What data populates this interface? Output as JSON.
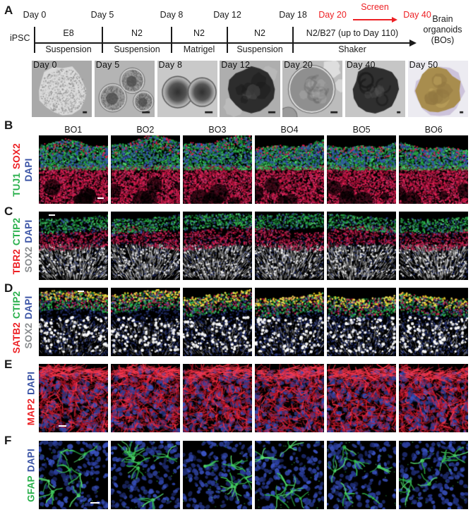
{
  "figure": {
    "accent_red": "#ed2024",
    "channel_colors": {
      "green": "#29b04b",
      "red": "#ed2024",
      "blue": "#3a53a5",
      "gray": "#898c8e"
    }
  },
  "panel_a": {
    "letter": "A",
    "timeline": {
      "ipsc": "iPSC",
      "day_marks": [
        "Day 0",
        "Day 5",
        "Day 8",
        "Day 12",
        "Day 18"
      ],
      "screen": {
        "day20": "Day 20",
        "screen": "Screen",
        "day40": "Day 40"
      },
      "segments": [
        {
          "top": "E8",
          "bottom": "Suspension"
        },
        {
          "top": "N2",
          "bottom": "Suspension"
        },
        {
          "top": "N2",
          "bottom": "Matrigel"
        },
        {
          "top": "N2",
          "bottom": "Suspension"
        },
        {
          "top": "N2/B27 (up to Day 110)",
          "bottom": "Shaker"
        }
      ],
      "endpoint_lines": [
        "Brain",
        "organoids",
        "(BOs)"
      ]
    },
    "photos": [
      "Day 0",
      "Day 5",
      "Day 8",
      "Day 12",
      "Day 20",
      "Day 40",
      "Day 50"
    ]
  },
  "organoid_columns": [
    "BO1",
    "BO2",
    "BO3",
    "BO4",
    "BO5",
    "BO6"
  ],
  "rows": [
    {
      "letter": "B",
      "line1": [
        {
          "text": "TUJ1",
          "color": "#29b04b"
        },
        {
          "text": "SOX2",
          "color": "#ed2024"
        }
      ],
      "line2": [
        {
          "text": "DAPI",
          "color": "#3a53a5"
        }
      ]
    },
    {
      "letter": "C",
      "line1": [
        {
          "text": "TBR2",
          "color": "#ed2024"
        },
        {
          "text": "CTIP2",
          "color": "#29b04b"
        }
      ],
      "line2": [
        {
          "text": "SOX2",
          "color": "#898c8e"
        },
        {
          "text": "DAPI",
          "color": "#3a53a5"
        }
      ]
    },
    {
      "letter": "D",
      "line1": [
        {
          "text": "SATB2",
          "color": "#ed2024"
        },
        {
          "text": "CTIP2",
          "color": "#29b04b"
        }
      ],
      "line2": [
        {
          "text": "SOX2",
          "color": "#898c8e"
        },
        {
          "text": "DAPI",
          "color": "#3a53a5"
        }
      ]
    },
    {
      "letter": "E",
      "line1": [
        {
          "text": "MAP2",
          "color": "#ed2024"
        },
        {
          "text": "DAPI",
          "color": "#3a53a5"
        }
      ],
      "line2": []
    },
    {
      "letter": "F",
      "line1": [
        {
          "text": "GFAP",
          "color": "#29b04b"
        },
        {
          "text": "DAPI",
          "color": "#3a53a5"
        }
      ],
      "line2": []
    }
  ]
}
